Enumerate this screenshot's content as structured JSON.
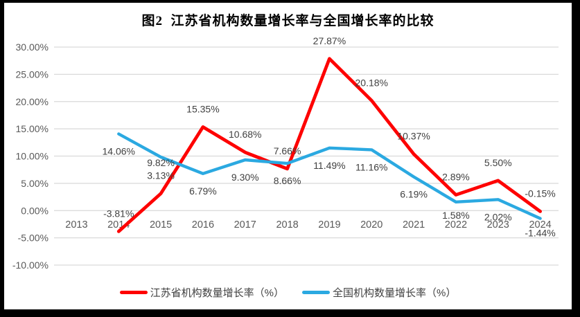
{
  "title": "图2  江苏省机构数量增长率与全国增长率的比较",
  "colors": {
    "frame": "#000000",
    "chart_background": "#ffffff",
    "gridline": "#d9d9d9",
    "axis_label": "#595959",
    "data_label": "#404040",
    "series_jiangsu": "#fe0000",
    "series_national": "#2ba9e1"
  },
  "chart_data": {
    "type": "line",
    "title": "图2  江苏省机构数量增长率与全国增长率的比较",
    "categories": [
      "2013",
      "2014",
      "2015",
      "2016",
      "2017",
      "2018",
      "2019",
      "2020",
      "2021",
      "2022",
      "2023",
      "2024"
    ],
    "series": [
      {
        "name": "江苏省机构数量增长率（%）",
        "color": "#fe0000",
        "values": [
          null,
          -3.81,
          3.13,
          15.35,
          10.68,
          7.66,
          27.87,
          20.18,
          10.37,
          2.89,
          5.5,
          -0.15
        ],
        "labels": [
          null,
          "-3.81%",
          "3.13%",
          "15.35%",
          "10.68%",
          "7.66%",
          "27.87%",
          "20.18%",
          "10.37%",
          "2.89%",
          "5.50%",
          "-0.15%"
        ]
      },
      {
        "name": "全国机构数量增长率（%）",
        "color": "#2ba9e1",
        "values": [
          null,
          14.06,
          9.82,
          6.79,
          9.3,
          8.66,
          11.49,
          11.16,
          6.19,
          1.58,
          2.02,
          -1.44
        ],
        "labels": [
          null,
          "14.06%",
          "9.82%",
          "6.79%",
          "9.30%",
          "8.66%",
          "11.49%",
          "11.16%",
          "6.19%",
          "1.58%",
          "2.02%",
          "-1.44%"
        ]
      }
    ],
    "y_axis": {
      "min": -10,
      "max": 30,
      "step": 5,
      "tick_labels": [
        "30.00%",
        "25.00%",
        "20.00%",
        "15.00%",
        "10.00%",
        "5.00%",
        "0.00%",
        "-5.00%",
        "-10.00%"
      ]
    },
    "grid": true,
    "data_labels": true,
    "legend_position": "bottom"
  }
}
